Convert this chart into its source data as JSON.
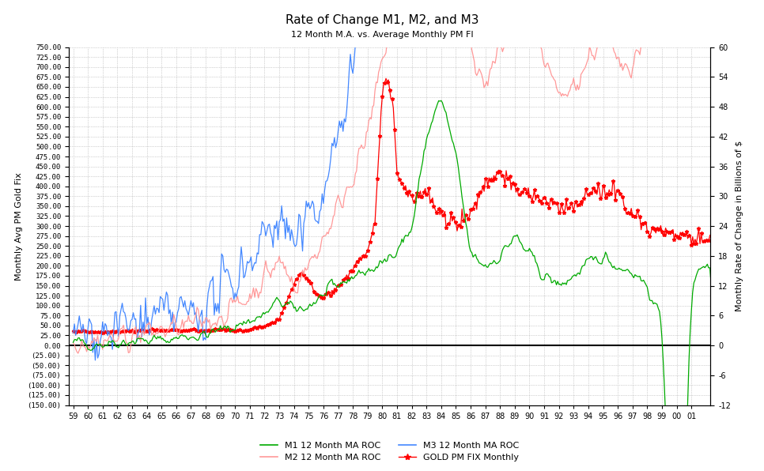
{
  "title": "Rate of Change M1, M2, and M3",
  "subtitle": "12 Month M.A. vs. Average Monthly PM FI",
  "ylabel_left": "Monthly Avg PM Gold Fix",
  "ylabel_right": "Monthly Rate of Change in Billions of $",
  "left_ylim": [
    -150,
    750
  ],
  "right_ylim": [
    -12,
    60
  ],
  "left_yticks": [
    750,
    725,
    700,
    675,
    650,
    625,
    600,
    575,
    550,
    525,
    500,
    475,
    450,
    425,
    400,
    375,
    350,
    325,
    300,
    275,
    250,
    225,
    200,
    175,
    150,
    125,
    100,
    75,
    50,
    25,
    0,
    -25,
    -50,
    -75,
    -100,
    -125,
    -150
  ],
  "right_yticks": [
    60,
    54,
    48,
    42,
    36,
    30,
    24,
    18,
    12,
    6,
    0,
    -6,
    -12
  ],
  "xlim_start": 58.7,
  "xlim_end": 102.3,
  "background_color": "#ffffff",
  "grid_color": "#aaaaaa",
  "colors": {
    "M1": "#00aa00",
    "M2": "#ff9999",
    "M3": "#4488ff",
    "GOLD": "#ff0000"
  },
  "legend": [
    "M1 12 Month MA ROC",
    "M2 12 Month MA ROC",
    "M3 12 Month MA ROC",
    "GOLD PM FIX Monthly"
  ],
  "m1_kp_x": [
    59,
    61,
    63,
    65,
    67,
    68,
    69,
    70,
    71,
    72,
    73,
    74,
    75,
    76,
    77,
    78,
    79,
    80,
    81,
    82,
    83,
    84,
    85,
    86,
    87,
    88,
    89,
    90,
    91,
    92,
    93,
    94,
    95,
    96,
    97,
    98,
    99,
    99.5,
    100,
    100.5,
    101,
    101.5,
    102
  ],
  "m1_kp_y": [
    0.5,
    0.5,
    1,
    1,
    2,
    2,
    3,
    4,
    5,
    6,
    9,
    7,
    8,
    10,
    12,
    14,
    15,
    16,
    20,
    23,
    42,
    50,
    38,
    18,
    16,
    18,
    22,
    18,
    14,
    12,
    14,
    16,
    18,
    16,
    15,
    12,
    4,
    -30,
    -50,
    -35,
    12,
    16,
    16
  ],
  "m2_kp_x": [
    59,
    61,
    63,
    65,
    67,
    68,
    69,
    70,
    71,
    72,
    73,
    74,
    75,
    76,
    77,
    78,
    79,
    80,
    81,
    82,
    83,
    84,
    85,
    86,
    87,
    88,
    89,
    90,
    91,
    92,
    93,
    94,
    95,
    96,
    97,
    98,
    99,
    99.5,
    100,
    101,
    101.5,
    102
  ],
  "m2_kp_y": [
    1,
    1,
    2,
    3,
    4,
    5,
    6,
    8,
    10,
    14,
    17,
    12,
    16,
    22,
    28,
    35,
    42,
    58,
    70,
    78,
    82,
    72,
    68,
    58,
    52,
    60,
    68,
    68,
    56,
    50,
    52,
    58,
    62,
    56,
    58,
    62,
    66,
    60,
    62,
    68,
    72,
    72
  ],
  "m3_kp_x": [
    59,
    61,
    63,
    65,
    67,
    68,
    69,
    70,
    71,
    72,
    73,
    74,
    75,
    76,
    77,
    78,
    79,
    80,
    81,
    82,
    83,
    84,
    85,
    86,
    87,
    88,
    89,
    90,
    91,
    92,
    93,
    94,
    95,
    96,
    97,
    97.5,
    98,
    98.5,
    99,
    99.4,
    99.7,
    100,
    100.3,
    100.6,
    101,
    101.5,
    102
  ],
  "m3_kp_y": [
    2,
    3,
    4,
    5,
    6,
    8,
    10,
    14,
    18,
    22,
    26,
    20,
    24,
    32,
    42,
    56,
    72,
    86,
    110,
    140,
    178,
    158,
    140,
    120,
    104,
    118,
    128,
    120,
    104,
    90,
    96,
    108,
    112,
    102,
    98,
    104,
    116,
    180,
    250,
    380,
    450,
    500,
    520,
    470,
    430,
    390,
    390
  ],
  "gold_kp_x": [
    59,
    60,
    61,
    62,
    63,
    64,
    65,
    66,
    67,
    68,
    69,
    70,
    71,
    72,
    73,
    74,
    74.5,
    75,
    75.5,
    76,
    77,
    78,
    79,
    79.5,
    80,
    80.2,
    80.5,
    80.8,
    81,
    81.5,
    82,
    83,
    84,
    85,
    86,
    87,
    88,
    89,
    90,
    91,
    92,
    93,
    94,
    95,
    96,
    97,
    98,
    99,
    100,
    101,
    102
  ],
  "gold_kp_y": [
    35,
    35,
    35,
    36,
    37,
    38,
    38,
    38,
    38,
    39,
    41,
    36,
    41,
    48,
    65,
    155,
    185,
    165,
    130,
    118,
    148,
    193,
    240,
    310,
    645,
    670,
    650,
    560,
    440,
    400,
    375,
    385,
    320,
    310,
    330,
    410,
    440,
    390,
    380,
    365,
    345,
    350,
    380,
    385,
    388,
    330,
    295,
    285,
    275,
    270,
    268
  ]
}
